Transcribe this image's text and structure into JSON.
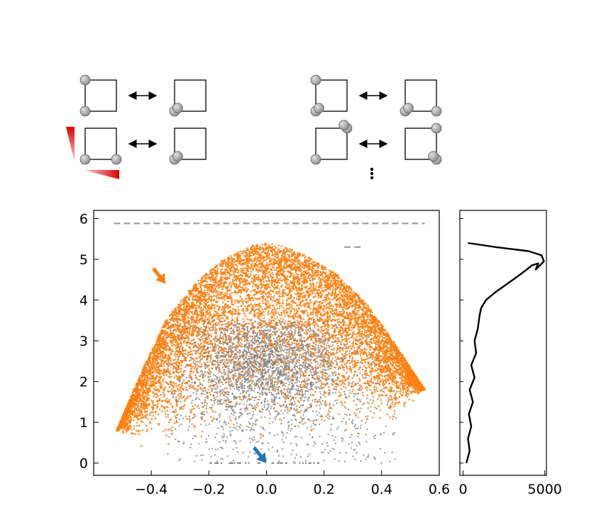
{
  "chart_data": [
    {
      "type": "scatter",
      "title": "",
      "xlabel": "",
      "ylabel": "",
      "xlim": [
        -0.6,
        0.6
      ],
      "ylim": [
        -0.3,
        6.2
      ],
      "x_ticks": [
        -0.4,
        -0.2,
        0.0,
        0.2,
        0.4,
        0.6
      ],
      "x_tick_labels": [
        "−0.4",
        "−0.2",
        "0.0",
        "0.2",
        "0.4",
        "0.6"
      ],
      "y_ticks": [
        0,
        1,
        2,
        3,
        4,
        5,
        6
      ],
      "y_tick_labels": [
        "0",
        "1",
        "2",
        "3",
        "4",
        "5",
        "6"
      ],
      "grid": false,
      "series": [
        {
          "color": "#ff7f0e",
          "dome_envelope": {
            "x": [
              -0.52,
              -0.45,
              -0.35,
              -0.25,
              -0.15,
              -0.05,
              0.0,
              0.05,
              0.15,
              0.25,
              0.35,
              0.45,
              0.55
            ],
            "y_top": [
              0.8,
              2.0,
              3.5,
              4.4,
              5.0,
              5.35,
              5.4,
              5.35,
              5.05,
              4.6,
              3.9,
              2.9,
              1.8
            ],
            "y_bottom": [
              0.8,
              0.3,
              0.2,
              0.2,
              0.3,
              0.5,
              0.5,
              0.5,
              0.4,
              0.3,
              0.6,
              1.0,
              1.8
            ]
          }
        },
        {
          "color": "#808080",
          "cloud": {
            "x_range": [
              -0.35,
              0.45
            ],
            "y_range": [
              0.0,
              3.5
            ],
            "dense_center": [
              0.0,
              2.5
            ]
          }
        }
      ],
      "reference_lines": [
        {
          "style": "dashed",
          "color": "#a0a0a0",
          "y": 5.88,
          "x_from": -0.53,
          "x_to": 0.55
        },
        {
          "style": "dashed",
          "color": "#a0a0a0",
          "y": 5.3,
          "x_from": 0.27,
          "x_to": 0.33
        }
      ],
      "annotations": [
        {
          "kind": "arrow",
          "color": "#ff7f0e",
          "tip": [
            -0.35,
            4.4
          ]
        },
        {
          "kind": "arrow",
          "color": "#1f77b4",
          "tip": [
            0.0,
            0.0
          ]
        }
      ]
    },
    {
      "type": "line",
      "title": "",
      "xlabel": "",
      "ylabel": "",
      "xlim": [
        -200,
        5100
      ],
      "ylim": [
        -0.3,
        6.2
      ],
      "x_ticks": [
        0,
        5000
      ],
      "x_tick_labels": [
        "0",
        "5000"
      ],
      "series": [
        {
          "color": "#000000",
          "x": [
            200,
            400,
            300,
            500,
            350,
            600,
            400,
            700,
            500,
            800,
            700,
            900,
            1000,
            1100,
            1400,
            2000,
            2700,
            3400,
            3900,
            4200,
            4600,
            4450,
            4950,
            4800,
            4000,
            2000,
            300
          ],
          "y": [
            0.0,
            0.3,
            0.6,
            0.9,
            1.2,
            1.5,
            1.8,
            2.1,
            2.4,
            2.7,
            3.0,
            3.3,
            3.6,
            3.8,
            4.0,
            4.2,
            4.4,
            4.6,
            4.75,
            4.85,
            4.9,
            4.75,
            4.95,
            5.1,
            5.2,
            5.3,
            5.4
          ]
        }
      ]
    }
  ],
  "schematics": [
    {
      "rows": [
        {
          "left": {
            "balls": [
              [
                0,
                0
              ],
              [
                0,
                1
              ]
            ]
          },
          "arrow": "double",
          "right": {
            "balls": [
              [
                0,
                1
              ],
              [
                0.1,
                0.9
              ]
            ]
          }
        },
        {
          "left": {
            "balls": [
              [
                0,
                1
              ],
              [
                1,
                1
              ]
            ]
          },
          "arrow": "double",
          "right": {
            "balls": [
              [
                0,
                1
              ],
              [
                0.1,
                0.9
              ]
            ]
          },
          "wedges": [
            "vertical",
            "horizontal"
          ]
        }
      ]
    },
    {
      "rows": [
        {
          "left": {
            "balls": [
              [
                0,
                0
              ],
              [
                0,
                1
              ],
              [
                0.1,
                0.9
              ]
            ]
          },
          "arrow": "double",
          "right": {
            "balls": [
              [
                0,
                1
              ],
              [
                0.1,
                0.9
              ],
              [
                1,
                1
              ]
            ]
          }
        },
        {
          "left": {
            "balls": [
              [
                1,
                0
              ],
              [
                0.9,
                -0.1
              ],
              [
                0,
                1
              ]
            ]
          },
          "arrow": "double",
          "right": {
            "balls": [
              [
                1,
                0
              ],
              [
                1,
                1
              ],
              [
                0.9,
                0.9
              ]
            ]
          },
          "ellipsis": true
        }
      ]
    }
  ]
}
